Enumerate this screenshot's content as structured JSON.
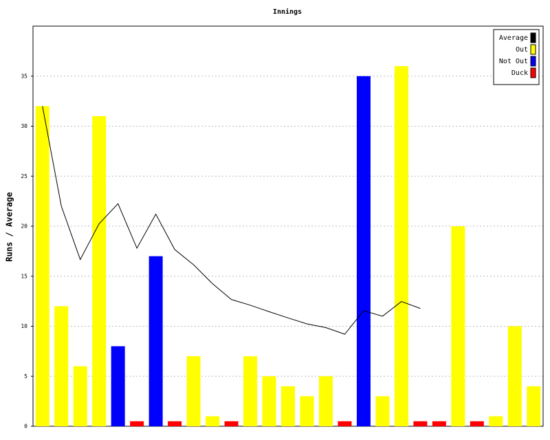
{
  "chart_data": {
    "type": "bar",
    "title": "Innings",
    "y_label": "Runs / Average",
    "ylim": [
      0,
      40
    ],
    "yticks": [
      0,
      5,
      10,
      15,
      20,
      25,
      30,
      35
    ],
    "grid": true,
    "legend": "top-right",
    "series": [
      {
        "name": "Average",
        "type": "line",
        "color": "#000000",
        "values": [
          32,
          22,
          16.67,
          20.25,
          22.25,
          17.8,
          21.2,
          17.67,
          16.14,
          14.25,
          12.67,
          12.1,
          11.45,
          10.83,
          10.23,
          9.86,
          9.2,
          11.55,
          11.0,
          12.47,
          11.78,
          null,
          null,
          null,
          null,
          null,
          null
        ]
      },
      {
        "name": "Out",
        "color": "#ffff00",
        "values": [
          32,
          12,
          6,
          31,
          null,
          null,
          null,
          null,
          7,
          1,
          null,
          7,
          5,
          4,
          3,
          5,
          null,
          null,
          3,
          36,
          null,
          null,
          20,
          null,
          1,
          10,
          4
        ]
      },
      {
        "name": "Not Out",
        "color": "#0000ff",
        "values": [
          null,
          null,
          null,
          null,
          8,
          null,
          17,
          null,
          null,
          null,
          null,
          null,
          null,
          null,
          null,
          null,
          null,
          35,
          null,
          null,
          null,
          null,
          null,
          null,
          null,
          null,
          null
        ]
      },
      {
        "name": "Duck",
        "color": "#ff0000",
        "values": [
          null,
          null,
          null,
          null,
          null,
          0.5,
          null,
          0.5,
          null,
          null,
          0.5,
          null,
          null,
          null,
          null,
          null,
          0.5,
          null,
          null,
          null,
          0.5,
          0.5,
          null,
          0.5,
          null,
          null,
          null
        ]
      }
    ]
  }
}
